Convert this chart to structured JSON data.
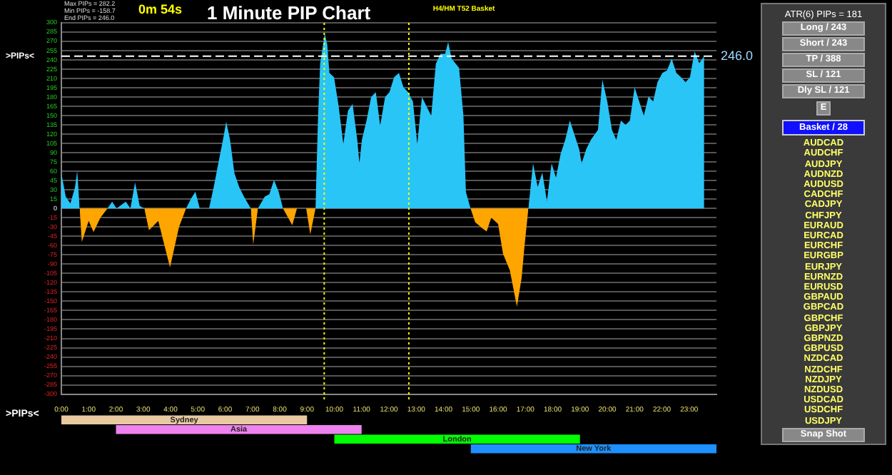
{
  "chart_data": [
    {
      "type": "area",
      "title": "1 Minute PIP Chart",
      "subtitle": "H4/HM T52 Basket",
      "annotations": [
        "Max PIPs = 282.2",
        "Min PIPs = -158.7",
        "End PIPs = 246.0",
        "0m 54s",
        ">PIPs<",
        ">PIPs<"
      ],
      "x": [
        0,
        0.16,
        0.33,
        0.5,
        0.58,
        0.67,
        0.75,
        1.0,
        1.18,
        1.43,
        1.69,
        1.86,
        2.02,
        2.36,
        2.53,
        2.7,
        2.87,
        3.04,
        3.21,
        3.55,
        3.98,
        4.31,
        4.57,
        4.74,
        4.91,
        5.07,
        5.25,
        5.41,
        5.58,
        5.75,
        5.92,
        6.04,
        6.18,
        6.34,
        6.52,
        6.69,
        6.94,
        7.03,
        7.2,
        7.45,
        7.62,
        7.79,
        7.96,
        8.12,
        8.46,
        8.63,
        8.97,
        9.12,
        9.31,
        9.4,
        9.48,
        9.65,
        9.74,
        9.82,
        9.99,
        10.16,
        10.33,
        10.5,
        10.67,
        10.84,
        10.92,
        11.01,
        11.18,
        11.35,
        11.52,
        11.68,
        11.86,
        12.02,
        12.19,
        12.37,
        12.53,
        12.7,
        12.88,
        13.04,
        13.21,
        13.38,
        13.55,
        13.72,
        13.89,
        14.06,
        14.17,
        14.3,
        14.57,
        14.73,
        14.82,
        14.99,
        15.16,
        15.42,
        15.58,
        15.75,
        16.0,
        16.18,
        16.43,
        16.69,
        16.86,
        16.97,
        17.11,
        17.28,
        17.45,
        17.62,
        17.79,
        17.96,
        18.12,
        18.29,
        18.46,
        18.63,
        18.8,
        18.97,
        19.06,
        19.23,
        19.4,
        19.66,
        19.82,
        20.0,
        20.17,
        20.33,
        20.5,
        20.67,
        20.83,
        21.0,
        21.17,
        21.34,
        21.51,
        21.68,
        21.84,
        22.02,
        22.19,
        22.36,
        22.53,
        22.7,
        22.87,
        23.03,
        23.2,
        23.37,
        23.55
      ],
      "series": [
        {
          "type": "area",
          "color": "#29c5f6",
          "values": [
            57,
            19,
            8,
            34,
            61,
            0,
            null,
            null,
            null,
            null,
            0,
            11,
            0,
            11,
            0,
            42,
            4,
            0,
            null,
            null,
            null,
            null,
            0,
            15,
            27,
            0,
            null,
            0,
            34,
            73,
            111,
            140,
            111,
            57,
            34,
            19,
            0,
            null,
            0,
            19,
            23,
            46,
            27,
            0,
            null,
            null,
            null,
            null,
            0,
            142,
            234,
            282.2,
            265,
            219,
            212,
            165,
            104,
            158,
            169,
            111,
            73,
            111,
            142,
            180,
            188,
            134,
            180,
            188,
            212,
            219,
            196,
            188,
            173,
            104,
            180,
            165,
            150,
            234,
            250,
            250,
            269,
            242,
            227,
            150,
            27,
            0,
            null,
            null,
            null,
            null,
            null,
            null,
            null,
            null,
            null,
            null,
            0,
            73,
            35,
            58,
            12,
            73,
            50,
            88,
            111,
            142,
            119,
            96,
            73,
            96,
            111,
            127,
            208,
            173,
            127,
            111,
            142,
            135,
            142,
            196,
            173,
            150,
            181,
            173,
            204,
            219,
            223,
            242,
            219,
            212,
            204,
            212,
            254,
            235,
            246
          ]
        },
        {
          "type": "area",
          "color": "#ffa500",
          "values": [
            null,
            null,
            null,
            null,
            null,
            0,
            -54,
            -20,
            -38,
            -15,
            0,
            null,
            null,
            null,
            null,
            null,
            null,
            0,
            -35,
            -20,
            -95,
            -30,
            0,
            null,
            null,
            null,
            null,
            null,
            null,
            null,
            null,
            null,
            null,
            null,
            null,
            null,
            0,
            -58,
            0,
            null,
            null,
            null,
            null,
            0,
            -27,
            0,
            0,
            -42,
            0,
            null,
            null,
            null,
            null,
            null,
            null,
            null,
            null,
            null,
            null,
            null,
            null,
            null,
            null,
            null,
            null,
            null,
            null,
            null,
            null,
            null,
            null,
            null,
            null,
            null,
            null,
            null,
            null,
            null,
            null,
            null,
            null,
            null,
            null,
            null,
            null,
            0,
            -22,
            -32,
            -37,
            -15,
            -25,
            -73,
            -100,
            -158.7,
            -113,
            -60,
            0,
            null,
            null,
            null,
            null,
            null,
            null,
            null,
            null,
            null,
            null,
            null,
            null,
            null,
            null,
            null,
            null,
            null,
            null,
            null,
            null,
            null,
            null,
            null,
            null,
            null,
            null,
            null,
            null,
            null,
            null,
            null,
            null,
            null,
            null,
            null,
            null,
            null,
            null
          ]
        }
      ],
      "xlim": [
        0,
        24
      ],
      "xticks": [
        {
          "value": 0,
          "label": null
        },
        {
          "value": 1,
          "label": null
        },
        {
          "value": 2,
          "label": null
        },
        {
          "value": 3,
          "label": null
        },
        {
          "value": 4,
          "label": null
        },
        {
          "value": 5,
          "label": null
        },
        {
          "value": 6,
          "label": null
        },
        {
          "value": 7,
          "label": null
        },
        {
          "value": 8,
          "label": null
        },
        {
          "value": 9,
          "label": null
        },
        {
          "value": 10,
          "label": null
        },
        {
          "value": 11,
          "label": null
        },
        {
          "value": 12,
          "label": null
        },
        {
          "value": 13,
          "label": null
        },
        {
          "value": 14,
          "label": null
        },
        {
          "value": 15,
          "label": null
        },
        {
          "value": 16,
          "label": null
        },
        {
          "value": 17,
          "label": null
        },
        {
          "value": 18,
          "label": null
        },
        {
          "value": 19,
          "label": null
        },
        {
          "value": 20,
          "label": null
        },
        {
          "value": 21,
          "label": null
        },
        {
          "value": 22,
          "label": null
        },
        {
          "value": 23,
          "label": null
        }
      ],
      "ylim": [
        -300,
        300
      ],
      "yticks": [
        -300,
        -285,
        -270,
        -255,
        -240,
        -225,
        -210,
        -195,
        -180,
        -165,
        -150,
        -135,
        -120,
        -105,
        -90,
        -75,
        -60,
        -45,
        -30,
        -15,
        0,
        15,
        30,
        45,
        60,
        75,
        90,
        105,
        120,
        135,
        150,
        165,
        180,
        195,
        210,
        225,
        240,
        255,
        270,
        285,
        300
      ],
      "ref_lines": [
        {
          "axis": "y",
          "value": 246,
          "label": "246.0",
          "color": "#ffffff",
          "line_style": "dashed"
        },
        {
          "axis": "x",
          "value": 9.63,
          "color": "#ffff00",
          "line_style": "dotted"
        },
        {
          "axis": "x",
          "value": 12.73,
          "color": "#ffff00",
          "line_style": "dotted"
        }
      ],
      "grid": true,
      "legend": false,
      "marker": "none",
      "tick_labels": "y"
    },
    {
      "type": "bar",
      "orientation": "horizontal",
      "categories": [
        null,
        null,
        null,
        null
      ],
      "xlim": [
        0,
        24
      ],
      "tick_labels": "x",
      "xticks": [
        {
          "value": 0,
          "label": "0:00"
        },
        {
          "value": 1,
          "label": "1:00"
        },
        {
          "value": 2,
          "label": "2:00"
        },
        {
          "value": 3,
          "label": "3:00"
        },
        {
          "value": 4,
          "label": "4:00"
        },
        {
          "value": 5,
          "label": "5:00"
        },
        {
          "value": 6,
          "label": "6:00"
        },
        {
          "value": 7,
          "label": "7:00"
        },
        {
          "value": 8,
          "label": "8:00"
        },
        {
          "value": 9,
          "label": "9:00"
        },
        {
          "value": 10,
          "label": "10:00"
        },
        {
          "value": 11,
          "label": "11:00"
        },
        {
          "value": 12,
          "label": "12:00"
        },
        {
          "value": 13,
          "label": "13:00"
        },
        {
          "value": 14,
          "label": "14:00"
        },
        {
          "value": 15,
          "label": "15:00"
        },
        {
          "value": 16,
          "label": "16:00"
        },
        {
          "value": 17,
          "label": "17:00"
        },
        {
          "value": 18,
          "label": "18:00"
        },
        {
          "value": 19,
          "label": "19:00"
        },
        {
          "value": 20,
          "label": "20:00"
        },
        {
          "value": 21,
          "label": "21:00"
        },
        {
          "value": 22,
          "label": "22:00"
        },
        {
          "value": 23,
          "label": "23:00"
        }
      ],
      "series": [
        {
          "values": [
            9,
            9,
            9,
            9
          ],
          "base": [
            0,
            2,
            10,
            15
          ],
          "colors": [
            "#e8c9a0",
            "#ee82ee",
            "#00ff00",
            "#1e90ff"
          ],
          "value_labels": [
            "Sydney",
            "Asia",
            "London",
            "New York"
          ]
        }
      ]
    },
    {
      "type": "other",
      "annotations": [
        "ATR(6) PIPs = 181",
        "Long / 243",
        "Short / 243",
        "TP / 388",
        "SL / 121",
        "Dly SL / 121",
        "E",
        "Basket / 28",
        "AUDCAD",
        "AUDCHF",
        "AUDJPY",
        "AUDNZD",
        "AUDUSD",
        "CADCHF",
        "CADJPY",
        "CHFJPY",
        "EURAUD",
        "EURCAD",
        "EURCHF",
        "EURGBP",
        "EURJPY",
        "EURNZD",
        "EURUSD",
        "GBPAUD",
        "GBPCAD",
        "GBPCHF",
        "GBPJPY",
        "GBPNZD",
        "GBPUSD",
        "NZDCAD",
        "NZDCHF",
        "NZDJPY",
        "NZDUSD",
        "USDCAD",
        "USDCHF",
        "USDJPY",
        "Snap Shot"
      ]
    }
  ]
}
